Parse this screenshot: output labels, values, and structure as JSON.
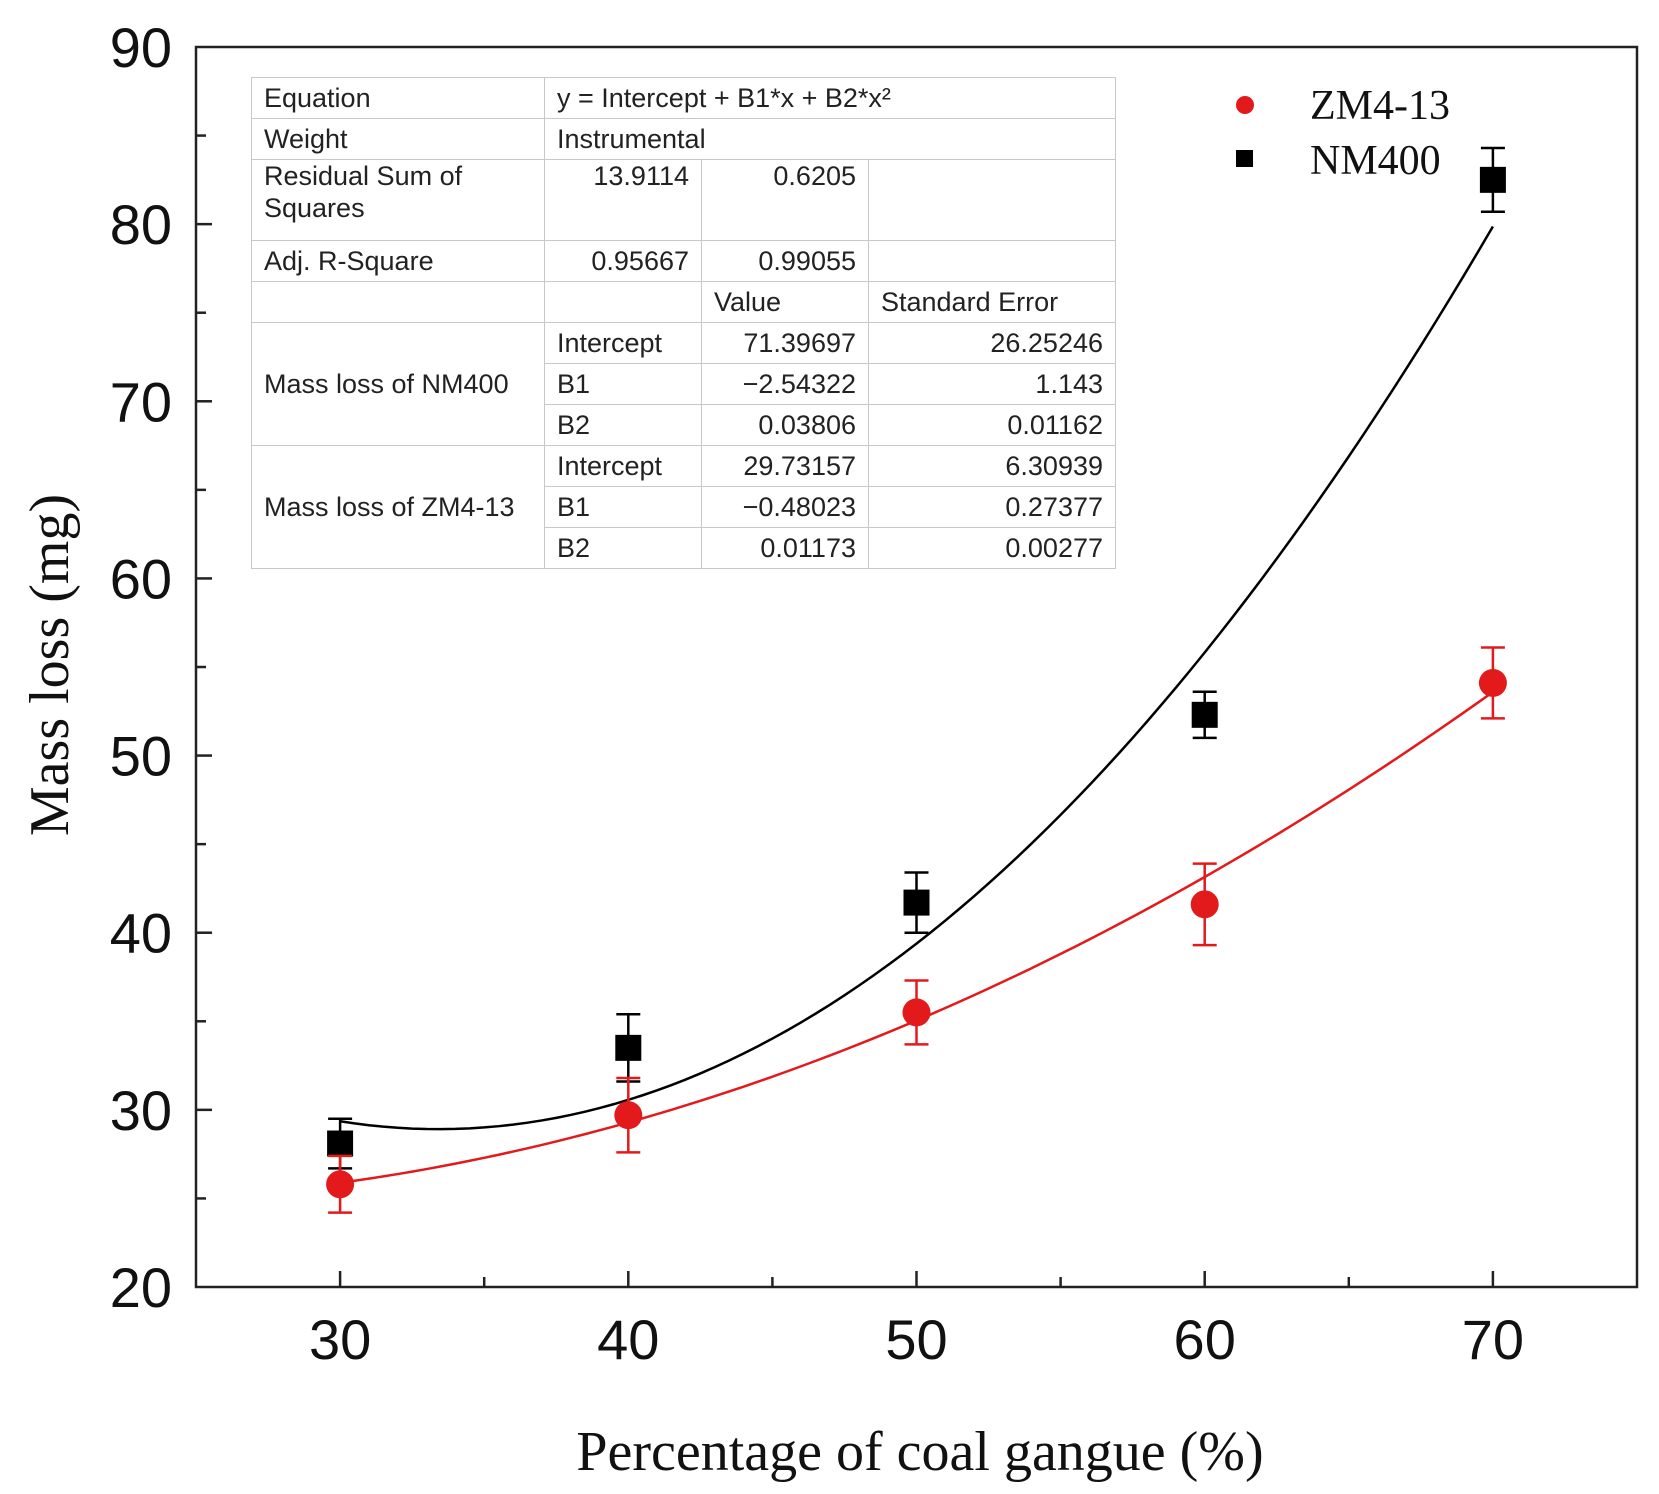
{
  "chart_data": {
    "type": "scatter",
    "xlabel": "Percentage of coal gangue (%)",
    "ylabel": "Mass loss (mg)",
    "xlim": [
      25,
      75
    ],
    "ylim": [
      20,
      90
    ],
    "x_ticks": [
      30,
      40,
      50,
      60,
      70
    ],
    "y_ticks": [
      20,
      30,
      40,
      50,
      60,
      70,
      80,
      90
    ],
    "legend_position": "top-right",
    "series": [
      {
        "name": "ZM4-13",
        "color": "#e31a1c",
        "marker": "circle",
        "x": [
          30,
          40,
          50,
          60,
          70
        ],
        "values": [
          25.8,
          29.7,
          35.5,
          41.6,
          54.1
        ],
        "errors": [
          1.6,
          2.1,
          1.8,
          2.3,
          2.0
        ],
        "fit": {
          "intercept": 29.73157,
          "b1": -0.48023,
          "b2": 0.01173
        }
      },
      {
        "name": "NM400",
        "color": "#000000",
        "marker": "square",
        "x": [
          30,
          40,
          50,
          60,
          70
        ],
        "values": [
          28.1,
          33.5,
          41.7,
          52.3,
          82.5
        ],
        "errors": [
          1.4,
          1.9,
          1.7,
          1.3,
          1.8
        ],
        "fit": {
          "intercept": 71.39697,
          "b1": -2.54322,
          "b2": 0.03806
        }
      }
    ],
    "fit_table": {
      "equation_label": "Equation",
      "equation_value": "y = Intercept + B1*x + B2*x²",
      "weight_label": "Weight",
      "weight_value": "Instrumental",
      "rss_label_line1": "Residual Sum of",
      "rss_label_line2": "Squares",
      "rss_values": [
        "13.9114",
        "0.6205"
      ],
      "adj_r2_label": "Adj. R-Square",
      "adj_r2_values": [
        "0.95667",
        "0.99055"
      ],
      "value_header": "Value",
      "stderr_header": "Standard Error",
      "groups": [
        {
          "label": "Mass loss of NM400",
          "rows": [
            {
              "param": "Intercept",
              "value": "71.39697",
              "stderr": "26.25246"
            },
            {
              "param": "B1",
              "value": "−2.54322",
              "stderr": "1.143"
            },
            {
              "param": "B2",
              "value": "0.03806",
              "stderr": "0.01162"
            }
          ]
        },
        {
          "label": "Mass loss of ZM4-13",
          "rows": [
            {
              "param": "Intercept",
              "value": "29.73157",
              "stderr": "6.30939"
            },
            {
              "param": "B1",
              "value": "−0.48023",
              "stderr": "0.27377"
            },
            {
              "param": "B2",
              "value": "0.01173",
              "stderr": "0.00277"
            }
          ]
        }
      ]
    }
  }
}
